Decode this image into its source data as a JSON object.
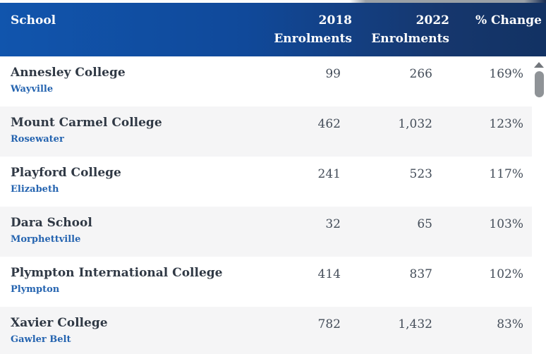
{
  "header": {
    "school_label": "School",
    "col_2018_label": "2018 Enrolments",
    "col_2022_label": "2022 Enrolments",
    "change_label": "% Change"
  },
  "rows": [
    {
      "school": "Annesley College",
      "suburb": "Wayville",
      "enrol_2018": "99",
      "enrol_2022": "266",
      "pct_change": "169%"
    },
    {
      "school": "Mount Carmel College",
      "suburb": "Rosewater",
      "enrol_2018": "462",
      "enrol_2022": "1,032",
      "pct_change": "123%"
    },
    {
      "school": "Playford College",
      "suburb": "Elizabeth",
      "enrol_2018": "241",
      "enrol_2022": "523",
      "pct_change": "117%"
    },
    {
      "school": "Dara School",
      "suburb": "Morphettville",
      "enrol_2018": "32",
      "enrol_2022": "65",
      "pct_change": "103%"
    },
    {
      "school": "Plympton International College",
      "suburb": "Plympton",
      "enrol_2018": "414",
      "enrol_2022": "837",
      "pct_change": "102%"
    },
    {
      "school": "Xavier College",
      "suburb": "Gawler Belt",
      "enrol_2018": "782",
      "enrol_2022": "1,432",
      "pct_change": "83%"
    }
  ],
  "colors": {
    "header_gradient_left": "#1155ad",
    "header_gradient_right": "#123263",
    "header_text": "#ffffff",
    "school_text": "#303945",
    "suburb_text": "#2564b0",
    "number_text": "#454e5a",
    "row_alt_bg": "#f5f5f6",
    "scrollbar_thumb": "#8f9397",
    "scrollbar_arrow": "#72767b"
  }
}
